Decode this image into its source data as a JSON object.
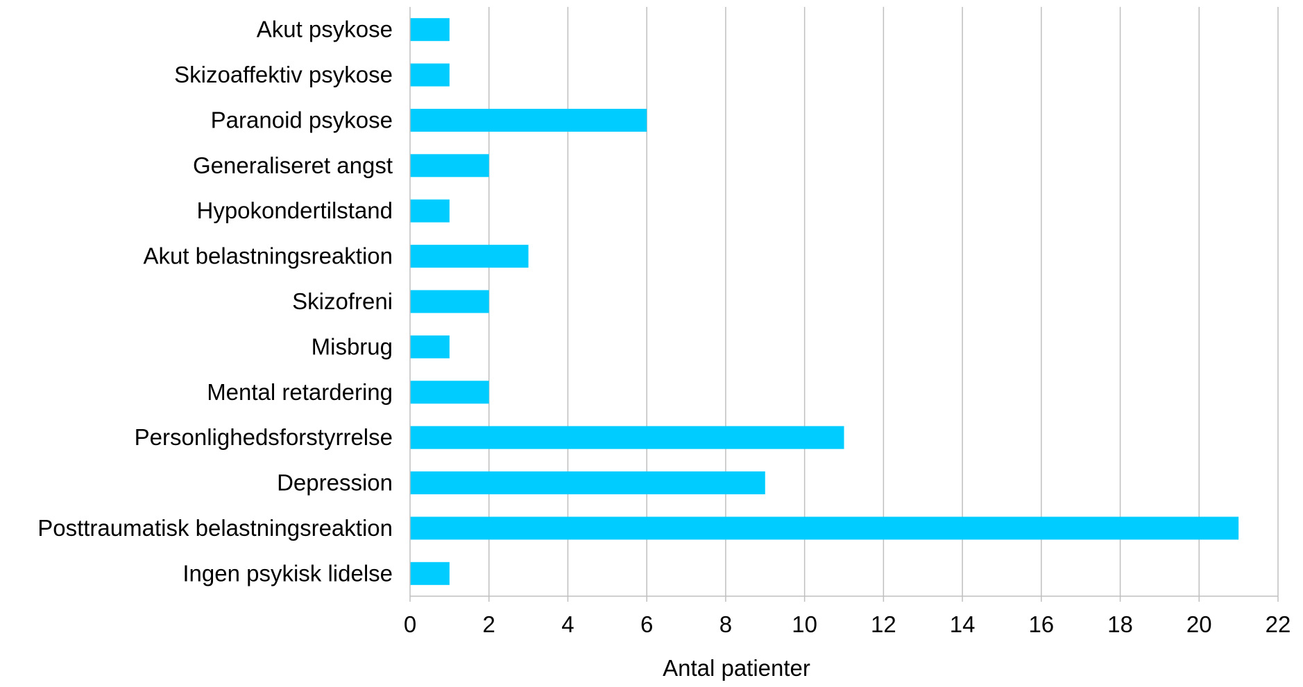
{
  "chart_data": {
    "type": "bar",
    "orientation": "horizontal",
    "categories": [
      "Akut psykose",
      "Skizoaffektiv psykose",
      "Paranoid psykose",
      "Generaliseret angst",
      "Hypokondertilstand",
      "Akut belastningsreaktion",
      "Skizofreni",
      "Misbrug",
      "Mental retardering",
      "Personlighedsforstyrrelse",
      "Depression",
      "Posttraumatisk belastningsreaktion",
      "Ingen psykisk lidelse"
    ],
    "values": [
      1,
      1,
      6,
      2,
      1,
      3,
      2,
      1,
      2,
      11,
      9,
      21,
      1
    ],
    "xlabel": "Antal patienter",
    "ylabel": "",
    "xlim": [
      0,
      22
    ],
    "xticks": [
      "0",
      "2",
      "4",
      "6",
      "8",
      "10",
      "12",
      "14",
      "16",
      "18",
      "20",
      "22"
    ],
    "grid": "vertical",
    "legend": "none",
    "bar_color": "#00CCFF",
    "grid_color": "#BFBFBF"
  }
}
